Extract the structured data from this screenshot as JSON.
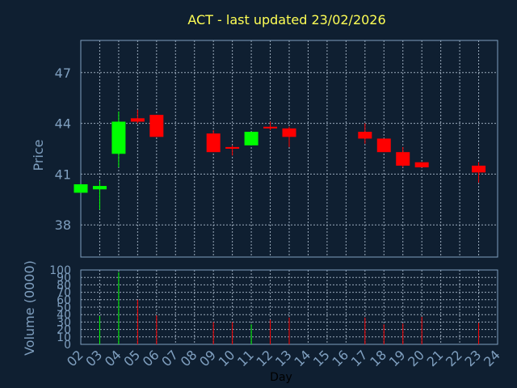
{
  "chart_data": {
    "type": "candlestick",
    "title": "ACT - last updated 23/02/2026",
    "price_axis": {
      "label": "Price",
      "ticks": [
        38,
        41,
        44,
        47
      ],
      "range": [
        36.1,
        48.9
      ]
    },
    "volume_axis": {
      "label": "Volume (0000)",
      "ticks": [
        0,
        10,
        20,
        30,
        40,
        50,
        60,
        70,
        80,
        90,
        100
      ],
      "range": [
        0,
        100
      ]
    },
    "x_axis": {
      "label": "Day",
      "ticks": [
        "02",
        "03",
        "04",
        "05",
        "06",
        "07",
        "08",
        "09",
        "10",
        "11",
        "12",
        "13",
        "14",
        "15",
        "16",
        "17",
        "18",
        "19",
        "20",
        "21",
        "22",
        "23",
        "24"
      ]
    },
    "candles": [
      {
        "day": "02",
        "open": 39.9,
        "high": 40.4,
        "low": 39.9,
        "close": 40.4
      },
      {
        "day": "03",
        "open": 40.1,
        "high": 40.6,
        "low": 38.9,
        "close": 40.3
      },
      {
        "day": "04",
        "open": 42.2,
        "high": 44.7,
        "low": 41.4,
        "close": 44.1
      },
      {
        "day": "05",
        "open": 44.3,
        "high": 44.8,
        "low": 44.0,
        "close": 44.1
      },
      {
        "day": "06",
        "open": 44.5,
        "high": 44.5,
        "low": 43.2,
        "close": 43.2
      },
      {
        "day": "09",
        "open": 43.4,
        "high": 43.6,
        "low": 42.3,
        "close": 42.3
      },
      {
        "day": "10",
        "open": 42.6,
        "high": 42.7,
        "low": 42.1,
        "close": 42.5
      },
      {
        "day": "11",
        "open": 42.7,
        "high": 43.5,
        "low": 42.7,
        "close": 43.5
      },
      {
        "day": "12",
        "open": 43.8,
        "high": 44.1,
        "low": 43.6,
        "close": 43.7
      },
      {
        "day": "13",
        "open": 43.7,
        "high": 43.8,
        "low": 42.6,
        "close": 43.2
      },
      {
        "day": "17",
        "open": 43.5,
        "high": 44.0,
        "low": 42.8,
        "close": 43.1
      },
      {
        "day": "18",
        "open": 43.1,
        "high": 43.1,
        "low": 42.3,
        "close": 42.3
      },
      {
        "day": "19",
        "open": 42.3,
        "high": 42.6,
        "low": 41.4,
        "close": 41.5
      },
      {
        "day": "20",
        "open": 41.7,
        "high": 41.7,
        "low": 41.4,
        "close": 41.4
      },
      {
        "day": "23",
        "open": 41.5,
        "high": 41.7,
        "low": 40.5,
        "close": 41.1
      }
    ],
    "volume": [
      {
        "day": "03",
        "value": 38
      },
      {
        "day": "04",
        "value": 97
      },
      {
        "day": "05",
        "value": 60
      },
      {
        "day": "06",
        "value": 39
      },
      {
        "day": "09",
        "value": 30
      },
      {
        "day": "10",
        "value": 30
      },
      {
        "day": "11",
        "value": 27
      },
      {
        "day": "12",
        "value": 33
      },
      {
        "day": "13",
        "value": 36
      },
      {
        "day": "17",
        "value": 36
      },
      {
        "day": "18",
        "value": 27
      },
      {
        "day": "19",
        "value": 28
      },
      {
        "day": "20",
        "value": 37
      },
      {
        "day": "23",
        "value": 29
      }
    ],
    "colors": {
      "background": "#0f1f31",
      "up": "#00ff00",
      "down": "#ff0000",
      "grid": "#9aaabb",
      "axis_text": "#7f9fbf",
      "title": "#ffff55"
    },
    "grid": true
  }
}
